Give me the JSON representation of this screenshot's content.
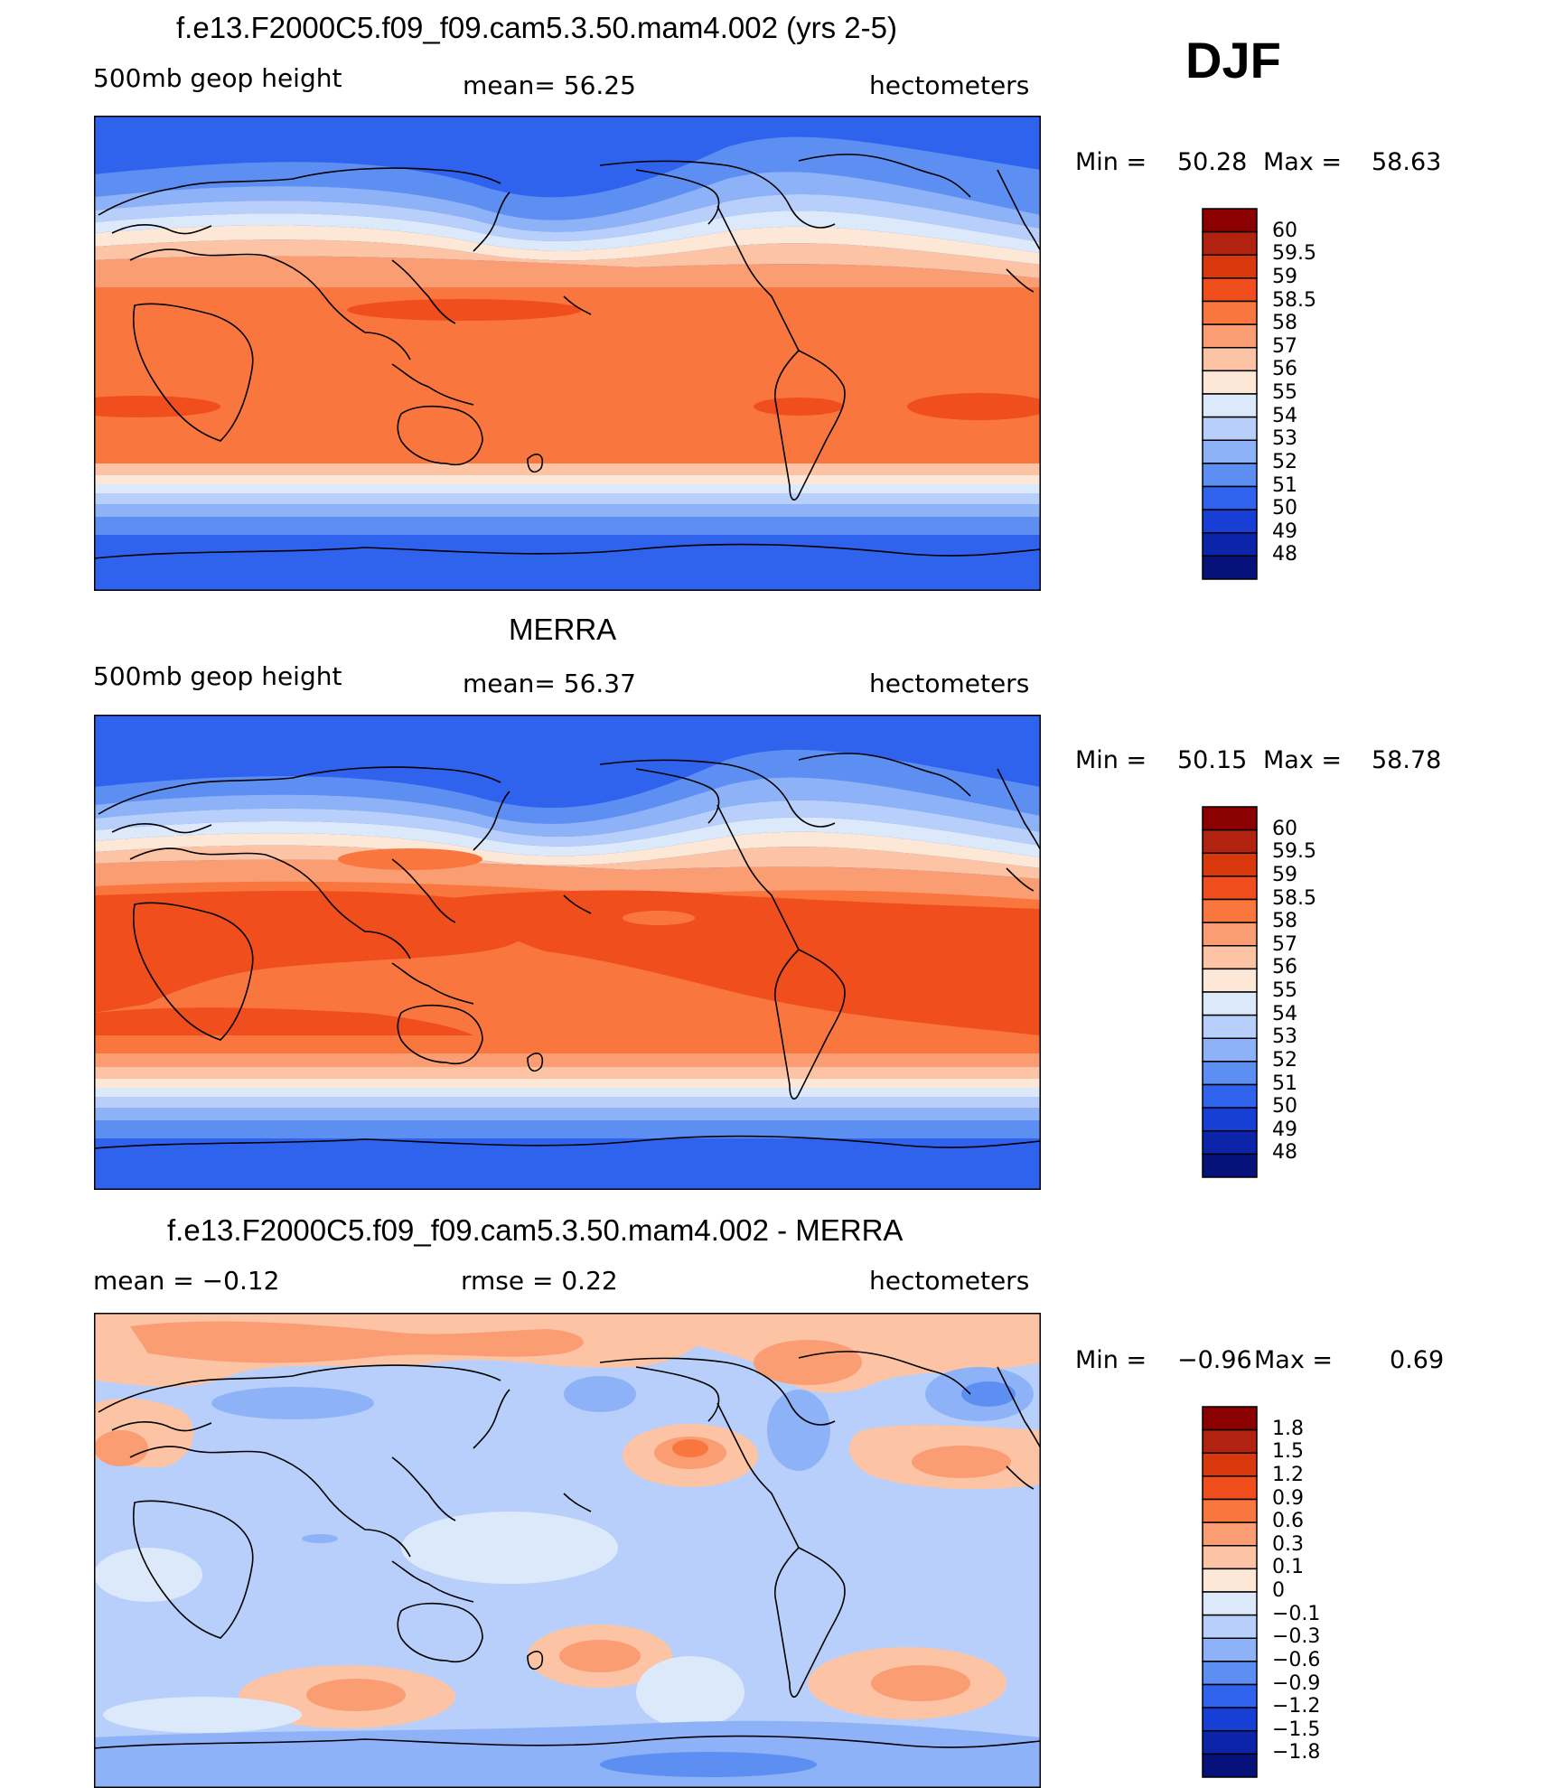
{
  "season": "DJF",
  "levels_abs": [
    "60",
    "59.5",
    "59",
    "58.5",
    "58",
    "57",
    "56",
    "55",
    "54",
    "53",
    "52",
    "51",
    "50",
    "49",
    "48"
  ],
  "levels_diff": [
    "1.8",
    "1.5",
    "1.2",
    "0.9",
    "0.6",
    "0.3",
    "0.1",
    "0",
    "−0.1",
    "−0.3",
    "−0.6",
    "−0.9",
    "−1.2",
    "−1.5",
    "−1.8"
  ],
  "colors": [
    "#8b0000",
    "#b22211",
    "#d8380c",
    "#f04e1c",
    "#f9773e",
    "#fa9d73",
    "#fcc4a5",
    "#fde7d6",
    "#dce9fb",
    "#b7cffa",
    "#8eb2f7",
    "#5d8ff3",
    "#2f63ee",
    "#173ed5",
    "#0c24a9",
    "#06127a"
  ],
  "panels": [
    {
      "title": "f.e13.F2000C5.f09_f09.cam5.3.50.mam4.002 (yrs 2-5)",
      "left": "500mb  geop  height",
      "center": "mean=   56.25",
      "right": "hectometers",
      "min_label": "Min  =",
      "min": "50.28",
      "max_label": "Max  =",
      "max": "58.63"
    },
    {
      "title": "MERRA",
      "left": "500mb  geop  height",
      "center": "mean=   56.37",
      "right": "hectometers",
      "min_label": "Min  =",
      "min": "50.15",
      "max_label": "Max  =",
      "max": "58.78"
    },
    {
      "title": "f.e13.F2000C5.f09_f09.cam5.3.50.mam4.002 - MERRA",
      "left": "mean  =    −0.12",
      "center": "rmse  =     0.22",
      "right": "hectometers",
      "min_label": "Min  =",
      "min": "−0.96",
      "max_label": "Max  =",
      "max": "0.69"
    }
  ]
}
